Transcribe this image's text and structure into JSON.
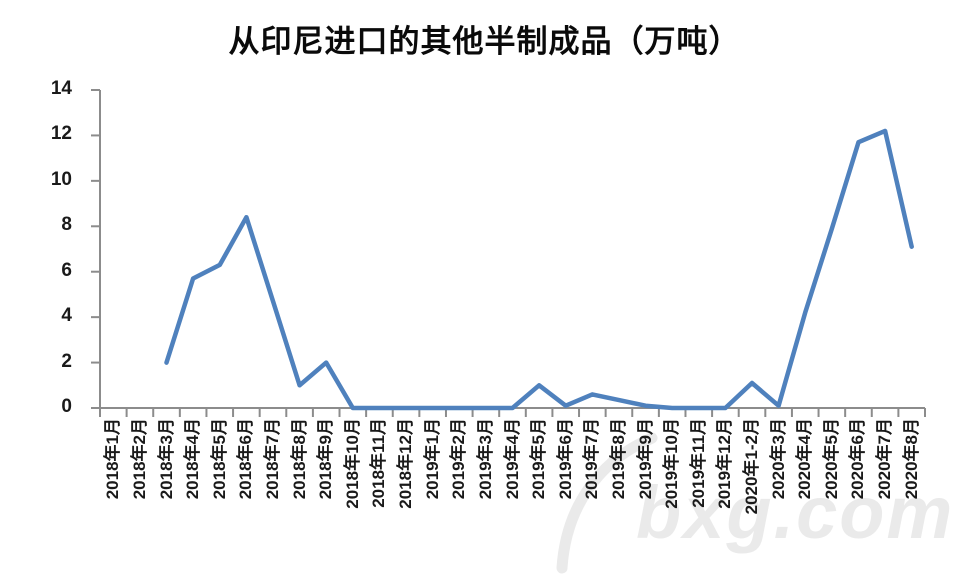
{
  "page": {
    "background": "#ffffff"
  },
  "chart_data": {
    "type": "line",
    "title": "从印尼进口的其他半制成品（万吨）",
    "categories": [
      "2018年1月",
      "2018年2月",
      "2018年3月",
      "2018年4月",
      "2018年5月",
      "2018年6月",
      "2018年7月",
      "2018年8月",
      "2018年9月",
      "2018年10月",
      "2018年11月",
      "2018年12月",
      "2019年1月",
      "2019年2月",
      "2019年3月",
      "2019年4月",
      "2019年5月",
      "2019年6月",
      "2019年7月",
      "2019年8月",
      "2019年9月",
      "2019年10月",
      "2019年11月",
      "2019年12月",
      "2020年1-2月",
      "2020年3月",
      "2020年4月",
      "2020年5月",
      "2020年6月",
      "2020年7月",
      "2020年8月"
    ],
    "values": [
      null,
      null,
      2.0,
      5.7,
      6.3,
      8.4,
      4.7,
      1.0,
      2.0,
      0,
      0,
      0,
      0,
      0,
      0,
      0,
      1.0,
      0.1,
      0.6,
      0.35,
      0.1,
      0,
      0,
      0,
      1.1,
      0.1,
      4.2,
      7.9,
      11.7,
      12.2,
      7.1
    ],
    "xlabel": "",
    "ylabel": "",
    "ylim": [
      0,
      14
    ],
    "yticks": [
      0,
      2,
      4,
      6,
      8,
      10,
      12,
      14
    ],
    "grid": false,
    "legend": "none",
    "line_color": "#4F81BD",
    "axis_color": "#8C8C8C",
    "tick_label_color": "#1a1a1a"
  },
  "watermark": {
    "text": "bxg.com",
    "color": "#d9d9d9"
  }
}
